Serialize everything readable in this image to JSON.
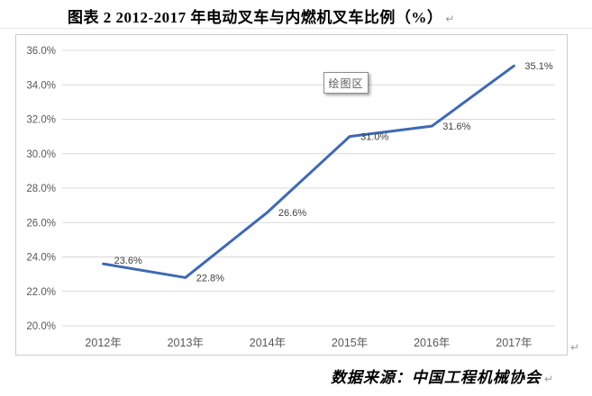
{
  "page": {
    "title": "图表 2  2012-2017 年电动叉车与内燃机叉车比例（%）",
    "paragraph_mark": "↵",
    "source_note": "数据来源：中国工程机械协会"
  },
  "chart": {
    "plot_area_tooltip": "绘图区"
  },
  "chart_data": {
    "type": "line",
    "title": "图表 2 2012-2017 年电动叉车与内燃机叉车比例（%）",
    "categories": [
      "2012年",
      "2013年",
      "2014年",
      "2015年",
      "2016年",
      "2017年"
    ],
    "values": [
      23.6,
      22.8,
      26.6,
      31.0,
      31.6,
      35.1
    ],
    "data_labels": [
      "23.6%",
      "22.8%",
      "26.6%",
      "31.0%",
      "31.6%",
      "35.1%"
    ],
    "y_ticks": [
      "20.0%",
      "22.0%",
      "24.0%",
      "26.0%",
      "28.0%",
      "30.0%",
      "32.0%",
      "34.0%",
      "36.0%"
    ],
    "ylim": [
      20.0,
      36.0
    ],
    "y_tick_step": 2.0,
    "grid": true,
    "legend": "none",
    "line_color": "#3f69b2",
    "grid_color": "#d9d9d9",
    "tick_color": "#595959",
    "label_color": "#404040"
  }
}
